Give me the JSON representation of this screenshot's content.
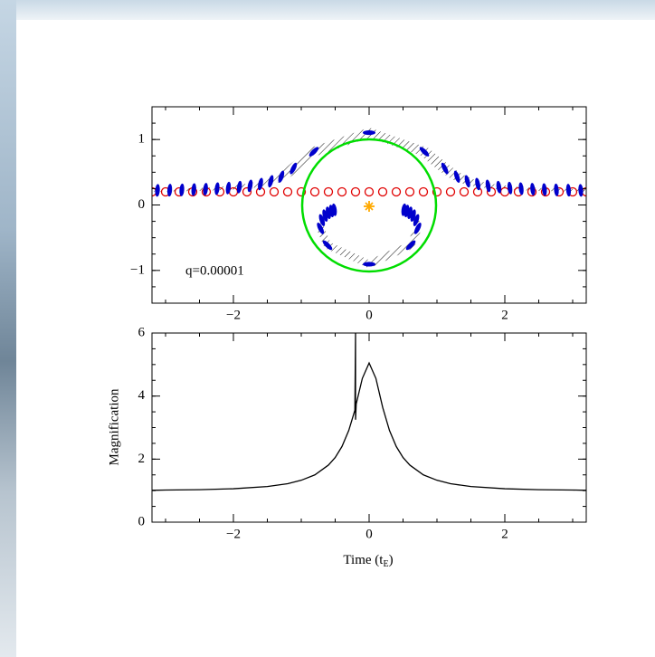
{
  "chart_data": [
    {
      "type": "scatter",
      "annotation": "q=0.00001",
      "xlim": [
        -3.2,
        3.2
      ],
      "ylim": [
        -1.5,
        1.5
      ],
      "xticks": [
        {
          "value": -2,
          "label": "−2"
        },
        0,
        2
      ],
      "yticks": [
        {
          "value": -1,
          "label": "−1"
        },
        0,
        1
      ],
      "series": [
        {
          "color": "#e00000",
          "marker": "open-circle",
          "x": [
            -3.2,
            -3.0,
            -2.8,
            -2.6,
            -2.4,
            -2.2,
            -2.0,
            -1.8,
            -1.6,
            -1.4,
            -1.2,
            -1.0,
            -0.8,
            -0.6,
            -0.4,
            -0.2,
            0,
            0.2,
            0.4,
            0.6,
            0.8,
            1.0,
            1.2,
            1.4,
            1.6,
            1.8,
            2.0,
            2.2,
            2.4,
            2.6,
            2.8,
            3.0,
            3.2
          ],
          "y": [
            0.2,
            0.2,
            0.2,
            0.2,
            0.2,
            0.2,
            0.2,
            0.2,
            0.2,
            0.2,
            0.2,
            0.2,
            0.2,
            0.2,
            0.2,
            0.2,
            0.2,
            0.2,
            0.2,
            0.2,
            0.2,
            0.2,
            0.2,
            0.2,
            0.2,
            0.2,
            0.2,
            0.2,
            0.2,
            0.2,
            0.2,
            0.2,
            0.2
          ]
        },
        {
          "color": "#0000cc",
          "marker": "image",
          "x": [
            -3.486,
            -3.301,
            -3.119,
            -2.939,
            -2.76,
            -2.584,
            -2.411,
            -2.241,
            -2.075,
            -1.912,
            -1.754,
            -1.601,
            -1.449,
            -1.295,
            -1.116,
            -0.814,
            0,
            0.814,
            1.116,
            1.295,
            1.449,
            1.601,
            1.754,
            1.912,
            2.075,
            2.241,
            2.411,
            2.584,
            2.76,
            2.939,
            3.119,
            3.301,
            3.486
          ],
          "y": [
            0.218,
            0.22,
            0.223,
            0.226,
            0.23,
            0.235,
            0.241,
            0.249,
            0.259,
            0.273,
            0.292,
            0.32,
            0.362,
            0.432,
            0.558,
            0.814,
            1.105,
            0.814,
            0.558,
            0.432,
            0.362,
            0.32,
            0.292,
            0.273,
            0.259,
            0.249,
            0.241,
            0.235,
            0.23,
            0.226,
            0.223,
            0.22,
            0.218
          ]
        },
        {
          "color": "#0000cc",
          "marker": "image",
          "x": [
            0.512,
            0.554,
            0.601,
            0.649,
            0.695,
            0.717,
            0.614,
            0,
            -0.614,
            -0.717,
            -0.695,
            -0.649,
            -0.601,
            -0.554,
            -0.512
          ],
          "y": [
            -0.073,
            -0.092,
            -0.12,
            -0.162,
            -0.232,
            -0.358,
            -0.614,
            -0.905,
            -0.614,
            -0.358,
            -0.232,
            -0.162,
            -0.12,
            -0.092,
            -0.073
          ]
        }
      ]
    },
    {
      "type": "line",
      "ylabel": "Magnification",
      "xlabel": [
        "Time (t",
        "E",
        ")"
      ],
      "color": "#000000",
      "xlim": [
        -3.2,
        3.2
      ],
      "ylim": [
        0,
        6
      ],
      "xticks": [
        {
          "value": -2,
          "label": "−2"
        },
        0,
        2
      ],
      "yticks": [
        0,
        2,
        4,
        6
      ],
      "x": [
        -3.2,
        -3,
        -2.5,
        -2,
        -1.5,
        -1.2,
        -1,
        -0.8,
        -0.6,
        -0.5,
        -0.4,
        -0.3,
        -0.21,
        -0.2,
        -0.2,
        -0.19,
        -0.1,
        0,
        0.1,
        0.2,
        0.3,
        0.4,
        0.5,
        0.6,
        0.8,
        1,
        1.2,
        1.5,
        2,
        2.5,
        3,
        3.2
      ],
      "values": [
        1.01,
        1.02,
        1.03,
        1.06,
        1.13,
        1.22,
        1.33,
        1.5,
        1.81,
        2.05,
        2.4,
        2.91,
        3.55,
        6,
        3.25,
        3.75,
        4.56,
        5.05,
        4.56,
        3.64,
        2.91,
        2.4,
        2.05,
        1.81,
        1.5,
        1.33,
        1.22,
        1.13,
        1.06,
        1.03,
        1.02,
        1.01
      ]
    }
  ]
}
